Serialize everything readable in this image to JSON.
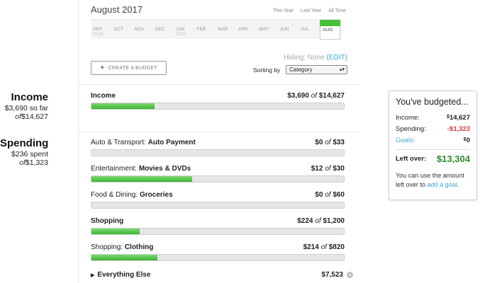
{
  "summary": {
    "income": {
      "title": "Income",
      "line1": "$3,690 so far",
      "of_word": "of",
      "total": "$14,627"
    },
    "spending": {
      "title": "Spending",
      "line1": "$236 spent",
      "of_word": "of",
      "total": "$1,323"
    }
  },
  "header": {
    "month_title": "August 2017",
    "range_links": [
      "This Year",
      "Last Year",
      "All Time"
    ]
  },
  "timeline": {
    "months": [
      {
        "label": "SEP",
        "year": "2016"
      },
      {
        "label": "OCT",
        "year": ""
      },
      {
        "label": "NOV",
        "year": ""
      },
      {
        "label": "DEC",
        "year": ""
      },
      {
        "label": "JAN",
        "year": "2017"
      },
      {
        "label": "FEB",
        "year": ""
      },
      {
        "label": "MAR",
        "year": ""
      },
      {
        "label": "APR",
        "year": ""
      },
      {
        "label": "MAY",
        "year": ""
      },
      {
        "label": "JUN",
        "year": ""
      },
      {
        "label": "JUL",
        "year": ""
      }
    ],
    "active": {
      "label": "AUG"
    },
    "accent": "#44c23a"
  },
  "toolbar": {
    "hiding_label": "Hiding:",
    "hiding_value": "None",
    "edit_label": "(EDIT)",
    "create_label": "CREATE A BUDGET",
    "sort_label": "Sorting by",
    "sort_value": "Category"
  },
  "income_row": {
    "label": "Income",
    "spent": "$3,690",
    "of_word": "of",
    "total": "$14,627",
    "progress": 0.25
  },
  "spending_rows": [
    {
      "category": "Auto & Transport:",
      "sub": "Auto Payment",
      "spent": "$0",
      "of_word": "of",
      "total": "$33",
      "progress": 0
    },
    {
      "category": "Entertainment:",
      "sub": "Movies & DVDs",
      "spent": "$12",
      "of_word": "of",
      "total": "$30",
      "progress": 0.4
    },
    {
      "category": "Food & Dining:",
      "sub": "Groceries",
      "spent": "$0",
      "of_word": "of",
      "total": "$60",
      "progress": 0
    },
    {
      "category": "",
      "sub": "Shopping",
      "spent": "$224",
      "of_word": "of",
      "total": "$1,200",
      "progress": 0.19
    },
    {
      "category": "Shopping:",
      "sub": "Clothing",
      "spent": "$214",
      "of_word": "of",
      "total": "$820",
      "progress": 0.26
    }
  ],
  "everything_else": {
    "label": "Everything Else",
    "amount": "$7,523"
  },
  "budget_box": {
    "title": "You've budgeted...",
    "income_label": "Income:",
    "income_value": "14,627",
    "spending_label": "Spending:",
    "spending_value": "-$1,323",
    "goals_label": "Goals:",
    "goals_value": "0",
    "leftover_label": "Left over:",
    "leftover_value": "$13,304",
    "note_text": "You can use the amount left over to",
    "note_link": "add a goal",
    "note_end": "."
  }
}
